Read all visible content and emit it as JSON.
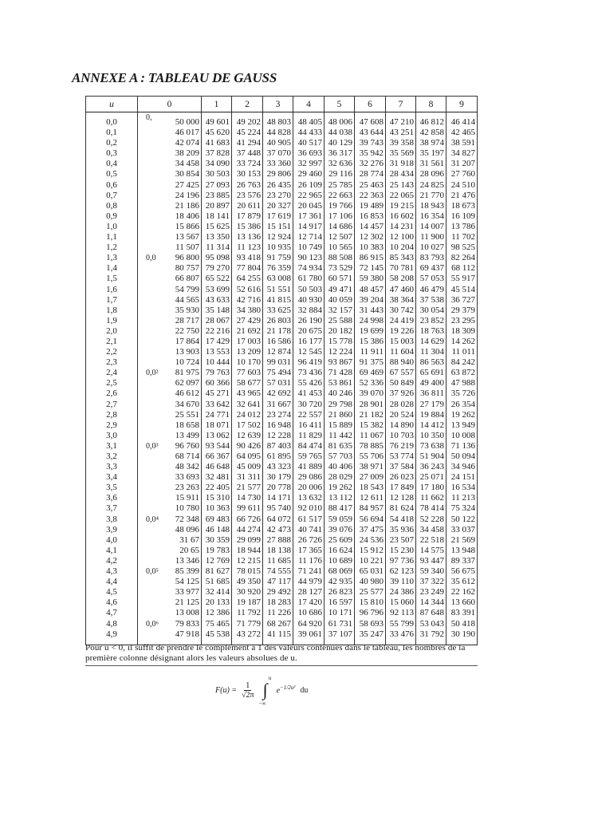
{
  "title": "ANNEXE A : TABLEAU DE GAUSS",
  "table": {
    "header_u": "u",
    "columns": [
      "0",
      "1",
      "2",
      "3",
      "4",
      "5",
      "6",
      "7",
      "8",
      "9"
    ],
    "rows": [
      {
        "u": "0,0",
        "prefix": "0,",
        "values": [
          "50 000",
          "49 601",
          "49 202",
          "48 803",
          "48 405",
          "48 006",
          "47 608",
          "47 210",
          "46 812",
          "46 414"
        ]
      },
      {
        "u": "0,1",
        "prefix": "",
        "values": [
          "46 017",
          "45 620",
          "45 224",
          "44 828",
          "44 433",
          "44 038",
          "43 644",
          "43 251",
          "42 858",
          "42 465"
        ]
      },
      {
        "u": "0,2",
        "prefix": "",
        "values": [
          "42 074",
          "41 683",
          "41 294",
          "40 905",
          "40 517",
          "40 129",
          "39 743",
          "39 358",
          "38 974",
          "38 591"
        ]
      },
      {
        "u": "0,3",
        "prefix": "",
        "values": [
          "38 209",
          "37 828",
          "37 448",
          "37 070",
          "36 693",
          "36 317",
          "35 942",
          "35 569",
          "35 197",
          "34 827"
        ]
      },
      {
        "u": "0,4",
        "prefix": "",
        "values": [
          "34 458",
          "34 090",
          "33 724",
          "33 360",
          "32 997",
          "32 636",
          "32 276",
          "31 918",
          "31 561",
          "31 207"
        ]
      },
      {
        "u": "0,5",
        "prefix": "",
        "values": [
          "30 854",
          "30 503",
          "30 153",
          "29 806",
          "29 460",
          "29 116",
          "28 774",
          "28 434",
          "28 096",
          "27 760"
        ]
      },
      {
        "u": "0,6",
        "prefix": "",
        "values": [
          "27 425",
          "27 093",
          "26 763",
          "26 435",
          "26 109",
          "25 785",
          "25 463",
          "25 143",
          "24 825",
          "24 510"
        ]
      },
      {
        "u": "0,7",
        "prefix": "",
        "values": [
          "24 196",
          "23 885",
          "23 576",
          "23 270",
          "22 965",
          "22 663",
          "22 363",
          "22 065",
          "21 770",
          "21 476"
        ]
      },
      {
        "u": "0,8",
        "prefix": "",
        "values": [
          "21 186",
          "20 897",
          "20 611",
          "20 327",
          "20 045",
          "19 766",
          "19 489",
          "19 215",
          "18 943",
          "18 673"
        ]
      },
      {
        "u": "0,9",
        "prefix": "",
        "values": [
          "18 406",
          "18 141",
          "17 879",
          "17 619",
          "17 361",
          "17 106",
          "16 853",
          "16 602",
          "16 354",
          "16 109"
        ]
      },
      {
        "u": "1,0",
        "prefix": "",
        "values": [
          "15 866",
          "15 625",
          "15 386",
          "15 151",
          "14 917",
          "14 686",
          "14 457",
          "14 231",
          "14 007",
          "13 786"
        ]
      },
      {
        "u": "1,1",
        "prefix": "",
        "values": [
          "13 567",
          "13 350",
          "13 136",
          "12 924",
          "12 714",
          "12 507",
          "12 302",
          "12 100",
          "11 900",
          "11 702"
        ]
      },
      {
        "u": "1,2",
        "prefix": "",
        "values": [
          "11 507",
          "11 314",
          "11 123",
          "10 935",
          "10 749",
          "10 565",
          "10 383",
          "10 204",
          "10 027",
          "98 525"
        ]
      },
      {
        "u": "1,3",
        "prefix": "0,0",
        "values": [
          "96 800",
          "95 098",
          "93 418",
          "91 759",
          "90 123",
          "88 508",
          "86 915",
          "85 343",
          "83 793",
          "82 264"
        ]
      },
      {
        "u": "1,4",
        "prefix": "",
        "values": [
          "80 757",
          "79 270",
          "77 804",
          "76 359",
          "74 934",
          "73 529",
          "72 145",
          "70 781",
          "69 437",
          "68 112"
        ]
      },
      {
        "u": "1,5",
        "prefix": "",
        "values": [
          "66 807",
          "65 522",
          "64 255",
          "63 008",
          "61 780",
          "60 571",
          "59 380",
          "58 208",
          "57 053",
          "55 917"
        ]
      },
      {
        "u": "1,6",
        "prefix": "",
        "values": [
          "54 799",
          "53 699",
          "52 616",
          "51 551",
          "50 503",
          "49 471",
          "48 457",
          "47 460",
          "46 479",
          "45 514"
        ]
      },
      {
        "u": "1,7",
        "prefix": "",
        "values": [
          "44 565",
          "43 633",
          "42 716",
          "41 815",
          "40 930",
          "40 059",
          "39 204",
          "38 364",
          "37 538",
          "36 727"
        ]
      },
      {
        "u": "1,8",
        "prefix": "",
        "values": [
          "35 930",
          "35 148",
          "34 380",
          "33 625",
          "32 884",
          "32 157",
          "31 443",
          "30 742",
          "30 054",
          "29 379"
        ]
      },
      {
        "u": "1,9",
        "prefix": "",
        "values": [
          "28 717",
          "28 067",
          "27 429",
          "26 803",
          "26 190",
          "25 588",
          "24 998",
          "24 419",
          "23 852",
          "23 295"
        ]
      },
      {
        "u": "2,0",
        "prefix": "",
        "values": [
          "22 750",
          "22 216",
          "21 692",
          "21 178",
          "20 675",
          "20 182",
          "19 699",
          "19 226",
          "18 763",
          "18 309"
        ]
      },
      {
        "u": "2,1",
        "prefix": "",
        "values": [
          "17 864",
          "17 429",
          "17 003",
          "16 586",
          "16 177",
          "15 778",
          "15 386",
          "15 003",
          "14 629",
          "14 262"
        ]
      },
      {
        "u": "2,2",
        "prefix": "",
        "values": [
          "13 903",
          "13 553",
          "13 209",
          "12 874",
          "12 545",
          "12 224",
          "11 911",
          "11 604",
          "11 304",
          "11 011"
        ]
      },
      {
        "u": "2,3",
        "prefix": "",
        "values": [
          "10 724",
          "10 444",
          "10 170",
          "99 031",
          "96 419",
          "93 867",
          "91 375",
          "88 940",
          "86 563",
          "84 242"
        ]
      },
      {
        "u": "2,4",
        "prefix": "0,0²",
        "values": [
          "81 975",
          "79 763",
          "77 603",
          "75 494",
          "73 436",
          "71 428",
          "69 469",
          "67 557",
          "65 691",
          "63 872"
        ]
      },
      {
        "u": "2,5",
        "prefix": "",
        "values": [
          "62 097",
          "60 366",
          "58 677",
          "57 031",
          "55 426",
          "53 861",
          "52 336",
          "50 849",
          "49 400",
          "47 988"
        ]
      },
      {
        "u": "2,6",
        "prefix": "",
        "values": [
          "46 612",
          "45 271",
          "43 965",
          "42 692",
          "41 453",
          "40 246",
          "39 070",
          "37 926",
          "36 811",
          "35 726"
        ]
      },
      {
        "u": "2,7",
        "prefix": "",
        "values": [
          "34 670",
          "33 642",
          "32 641",
          "31 667",
          "30 720",
          "29 798",
          "28 901",
          "28 028",
          "27 179",
          "26 354"
        ]
      },
      {
        "u": "2,8",
        "prefix": "",
        "values": [
          "25 551",
          "24 771",
          "24 012",
          "23 274",
          "22 557",
          "21 860",
          "21 182",
          "20 524",
          "19 884",
          "19 262"
        ]
      },
      {
        "u": "2,9",
        "prefix": "",
        "values": [
          "18 658",
          "18 071",
          "17 502",
          "16 948",
          "16 411",
          "15 889",
          "15 382",
          "14 890",
          "14 412",
          "13 949"
        ]
      },
      {
        "u": "3,0",
        "prefix": "",
        "values": [
          "13 499",
          "13 062",
          "12 639",
          "12 228",
          "11 829",
          "11 442",
          "11 067",
          "10 703",
          "10 350",
          "10 008"
        ]
      },
      {
        "u": "3,1",
        "prefix": "0,0³",
        "values": [
          "96 760",
          "93 544",
          "90 426",
          "87 403",
          "84 474",
          "81 635",
          "78 885",
          "76 219",
          "73 638",
          "71 136"
        ]
      },
      {
        "u": "3,2",
        "prefix": "",
        "values": [
          "68 714",
          "66 367",
          "64 095",
          "61 895",
          "59 765",
          "57 703",
          "55 706",
          "53 774",
          "51 904",
          "50 094"
        ]
      },
      {
        "u": "3,3",
        "prefix": "",
        "values": [
          "48 342",
          "46 648",
          "45 009",
          "43 323",
          "41 889",
          "40 406",
          "38 971",
          "37 584",
          "36 243",
          "34 946"
        ]
      },
      {
        "u": "3,4",
        "prefix": "",
        "values": [
          "33 693",
          "32 481",
          "31 311",
          "30 179",
          "29 086",
          "28 029",
          "27 009",
          "26 023",
          "25 071",
          "24 151"
        ]
      },
      {
        "u": "3,5",
        "prefix": "",
        "values": [
          "23 263",
          "22 405",
          "21 577",
          "20 778",
          "20 006",
          "19 262",
          "18 543",
          "17 849",
          "17 180",
          "16 534"
        ]
      },
      {
        "u": "3,6",
        "prefix": "",
        "values": [
          "15 911",
          "15 310",
          "14 730",
          "14 171",
          "13 632",
          "13 112",
          "12 611",
          "12 128",
          "11 662",
          "11 213"
        ]
      },
      {
        "u": "3,7",
        "prefix": "",
        "values": [
          "10 780",
          "10 363",
          "99 611",
          "95 740",
          "92 010",
          "88 417",
          "84 957",
          "81 624",
          "78 414",
          "75 324"
        ]
      },
      {
        "u": "3,8",
        "prefix": "0,0⁴",
        "values": [
          "72 348",
          "69 483",
          "66 726",
          "64 072",
          "61 517",
          "59 059",
          "56 694",
          "54 418",
          "52 228",
          "50 122"
        ]
      },
      {
        "u": "3,9",
        "prefix": "",
        "values": [
          "48 096",
          "46 148",
          "44 274",
          "42 473",
          "40 741",
          "39 076",
          "37 475",
          "35 936",
          "34 458",
          "33 037"
        ]
      },
      {
        "u": "4,0",
        "prefix": "",
        "values": [
          "31 67",
          "30 359",
          "29 099",
          "27 888",
          "26 726",
          "25 609",
          "24 536",
          "23 507",
          "22 518",
          "21 569"
        ]
      },
      {
        "u": "4,1",
        "prefix": "",
        "values": [
          "20 65",
          "19 783",
          "18 944",
          "18 138",
          "17 365",
          "16 624",
          "15 912",
          "15 230",
          "14 575",
          "13 948"
        ]
      },
      {
        "u": "4,2",
        "prefix": "",
        "values": [
          "13 346",
          "12 769",
          "12 215",
          "11 685",
          "11 176",
          "10 689",
          "10 221",
          "97 736",
          "93 447",
          "89 337"
        ]
      },
      {
        "u": "4,3",
        "prefix": "0,0⁵",
        "values": [
          "85 399",
          "81 627",
          "78 015",
          "74 555",
          "71 241",
          "68 069",
          "65 031",
          "62 123",
          "59 340",
          "56 675"
        ]
      },
      {
        "u": "4,4",
        "prefix": "",
        "values": [
          "54 125",
          "51 685",
          "49 350",
          "47 117",
          "44 979",
          "42 935",
          "40 980",
          "39 110",
          "37 322",
          "35 612"
        ]
      },
      {
        "u": "4,5",
        "prefix": "",
        "values": [
          "33 977",
          "32 414",
          "30 920",
          "29 492",
          "28 127",
          "26 823",
          "25 577",
          "24 386",
          "23 249",
          "22 162"
        ]
      },
      {
        "u": "4,6",
        "prefix": "",
        "values": [
          "21 125",
          "20 133",
          "19 187",
          "18 283",
          "17 420",
          "16 597",
          "15 810",
          "15 060",
          "14 344",
          "13 660"
        ]
      },
      {
        "u": "4,7",
        "prefix": "",
        "values": [
          "13 008",
          "12 386",
          "11 792",
          "11 226",
          "10 686",
          "10 171",
          "96 796",
          "92 113",
          "87 648",
          "83 391"
        ]
      },
      {
        "u": "4,8",
        "prefix": "0,0⁶",
        "values": [
          "79 833",
          "75 465",
          "71 779",
          "68 267",
          "64 920",
          "61 731",
          "58 693",
          "55 799",
          "53 043",
          "50 418"
        ]
      },
      {
        "u": "4,9",
        "prefix": "",
        "values": [
          "47 918",
          "45 538",
          "43 272",
          "41 115",
          "39 061",
          "37 107",
          "35 247",
          "33 476",
          "31 792",
          "30 190"
        ]
      }
    ]
  },
  "note": "Pour u < 0, il suffit de prendre le complément à 1 des valeurs contenues dans le tableau, les nombres de la première colonne désignant alors les valeurs absolues de u.",
  "formula": {
    "lhs": "F(u) =",
    "numerator": "1",
    "denominator": "√2π",
    "integral_sign": "∫",
    "upper_limit": "u",
    "lower_limit": "−∞",
    "integrand": "e",
    "exponent": "−1/2u²",
    "differential": "du"
  }
}
